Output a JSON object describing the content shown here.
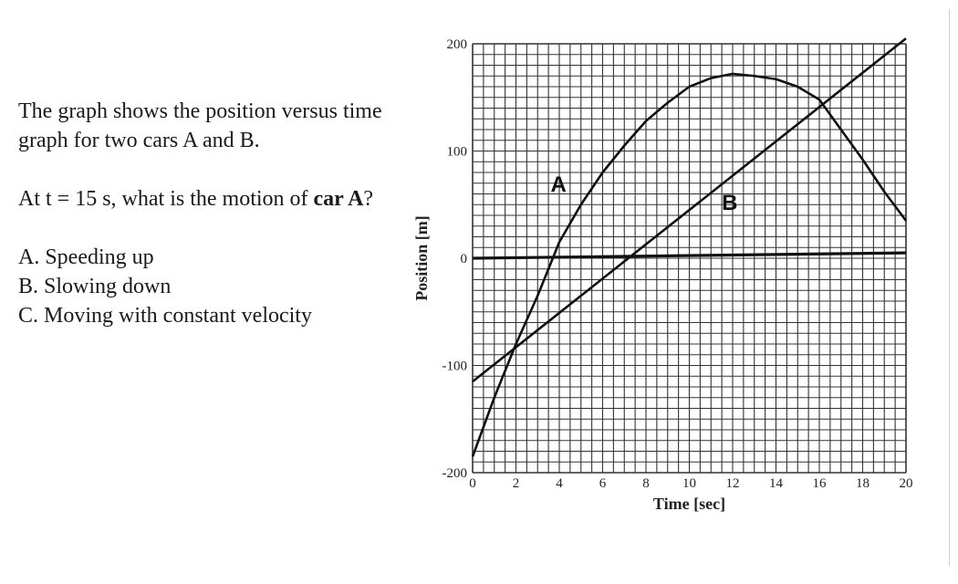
{
  "question": {
    "intro": "The graph shows the position versus time graph for two cars A and B.",
    "ask_prefix": "At t = 15 s,  what is the motion of ",
    "ask_bold": "car A",
    "ask_suffix": "?",
    "options": [
      "A. Speeding up",
      "B. Slowing down",
      "C. Moving with constant velocity"
    ]
  },
  "chart_data": {
    "type": "line",
    "title": "",
    "xlabel": "Time  [sec]",
    "ylabel": "Position  [m]",
    "xlim": [
      0,
      20
    ],
    "ylim": [
      -200,
      200
    ],
    "grid": true,
    "x_ticks": [
      0,
      2,
      4,
      6,
      8,
      10,
      12,
      14,
      16,
      18,
      20
    ],
    "y_ticks": [
      -200,
      -100,
      0,
      100,
      200
    ],
    "x_tick_labels": [
      "0",
      "2",
      "4",
      "6",
      "8",
      "10",
      "12",
      "14",
      "16",
      "18",
      "20"
    ],
    "y_tick_labels": [
      "-200",
      "-100",
      "0",
      "100",
      "200"
    ],
    "series": [
      {
        "name": "A",
        "x": [
          0,
          1,
          2,
          3,
          4,
          5,
          6,
          7,
          8,
          9,
          10,
          11,
          12,
          13,
          14,
          15,
          16,
          17,
          18,
          19,
          20
        ],
        "values": [
          -185,
          -130,
          -80,
          -35,
          15,
          50,
          80,
          105,
          128,
          145,
          160,
          168,
          172,
          170,
          167,
          160,
          148,
          120,
          92,
          62,
          35
        ]
      },
      {
        "name": "B",
        "x": [
          0,
          20
        ],
        "values": [
          -115,
          205
        ]
      },
      {
        "name": "",
        "x": [
          0,
          20
        ],
        "values": [
          0,
          5
        ]
      }
    ]
  }
}
